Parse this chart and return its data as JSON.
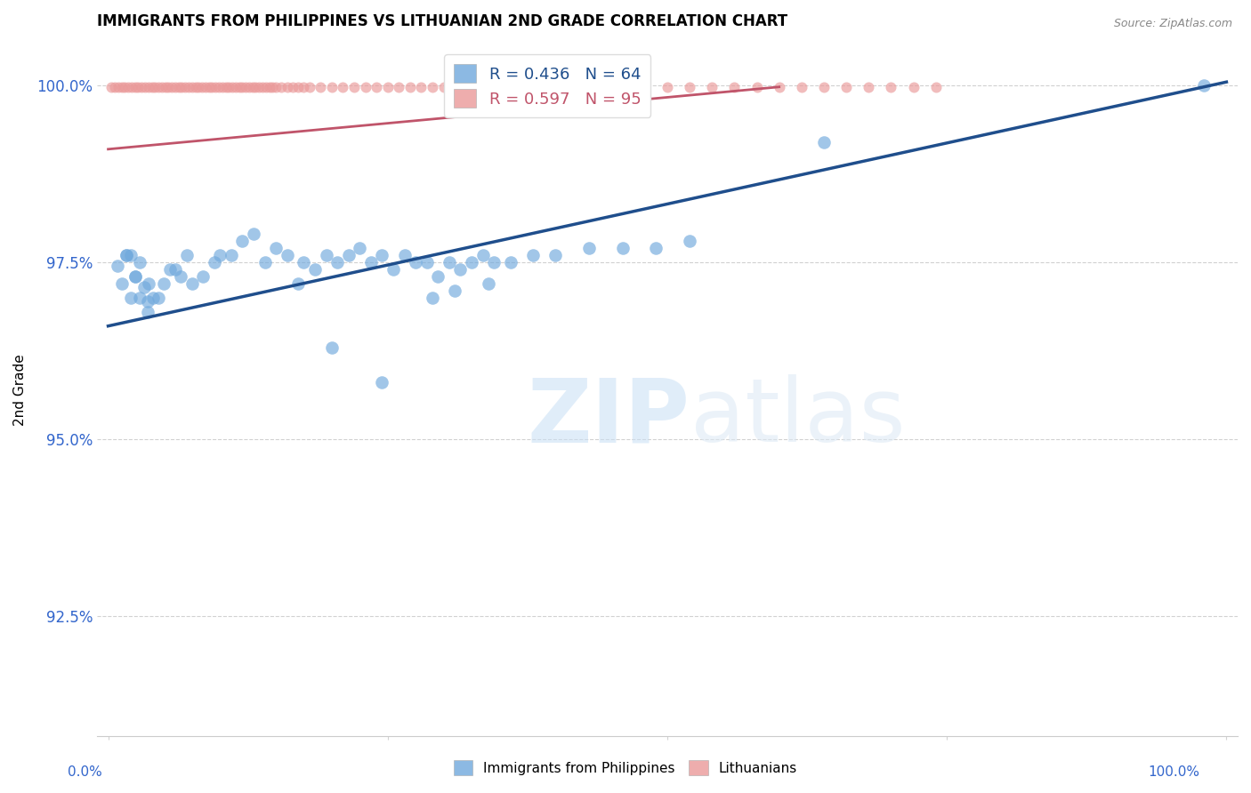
{
  "title": "IMMIGRANTS FROM PHILIPPINES VS LITHUANIAN 2ND GRADE CORRELATION CHART",
  "source": "Source: ZipAtlas.com",
  "ylabel": "2nd Grade",
  "ytick_labels": [
    "100.0%",
    "97.5%",
    "95.0%",
    "92.5%"
  ],
  "ytick_values": [
    1.0,
    0.975,
    0.95,
    0.925
  ],
  "ylim": [
    0.908,
    1.006
  ],
  "xlim": [
    -0.01,
    1.01
  ],
  "blue_color": "#6fa8dc",
  "pink_color": "#ea9999",
  "blue_line_color": "#1f4e8c",
  "pink_line_color": "#c0546a",
  "tick_color": "#3366cc",
  "legend_blue_label": "R = 0.436   N = 64",
  "legend_pink_label": "R = 0.597   N = 95",
  "legend_bottom_blue": "Immigrants from Philippines",
  "legend_bottom_pink": "Lithuanians",
  "watermark_zip": "ZIP",
  "watermark_atlas": "atlas",
  "blue_scatter_x": [
    0.008,
    0.012,
    0.016,
    0.02,
    0.024,
    0.016,
    0.02,
    0.024,
    0.028,
    0.032,
    0.036,
    0.028,
    0.035,
    0.04,
    0.035,
    0.045,
    0.05,
    0.06,
    0.065,
    0.07,
    0.055,
    0.075,
    0.085,
    0.095,
    0.1,
    0.11,
    0.12,
    0.13,
    0.14,
    0.15,
    0.16,
    0.17,
    0.175,
    0.185,
    0.195,
    0.205,
    0.215,
    0.225,
    0.235,
    0.245,
    0.255,
    0.265,
    0.275,
    0.285,
    0.295,
    0.305,
    0.315,
    0.325,
    0.335,
    0.345,
    0.29,
    0.31,
    0.34,
    0.36,
    0.38,
    0.4,
    0.43,
    0.46,
    0.49,
    0.52,
    0.2,
    0.245,
    0.98,
    0.64
  ],
  "blue_scatter_y": [
    0.9745,
    0.972,
    0.976,
    0.97,
    0.973,
    0.976,
    0.976,
    0.973,
    0.975,
    0.9715,
    0.972,
    0.97,
    0.9695,
    0.97,
    0.968,
    0.97,
    0.972,
    0.974,
    0.973,
    0.976,
    0.974,
    0.972,
    0.973,
    0.975,
    0.976,
    0.976,
    0.978,
    0.979,
    0.975,
    0.977,
    0.976,
    0.972,
    0.975,
    0.974,
    0.976,
    0.975,
    0.976,
    0.977,
    0.975,
    0.976,
    0.974,
    0.976,
    0.975,
    0.975,
    0.973,
    0.975,
    0.974,
    0.975,
    0.976,
    0.975,
    0.97,
    0.971,
    0.972,
    0.975,
    0.976,
    0.976,
    0.977,
    0.977,
    0.977,
    0.978,
    0.963,
    0.958,
    1.0,
    0.992
  ],
  "pink_scatter_x": [
    0.003,
    0.006,
    0.009,
    0.012,
    0.015,
    0.018,
    0.021,
    0.024,
    0.027,
    0.03,
    0.033,
    0.036,
    0.039,
    0.042,
    0.045,
    0.048,
    0.051,
    0.054,
    0.057,
    0.06,
    0.063,
    0.066,
    0.069,
    0.072,
    0.075,
    0.078,
    0.081,
    0.084,
    0.087,
    0.09,
    0.093,
    0.096,
    0.099,
    0.102,
    0.105,
    0.108,
    0.111,
    0.114,
    0.117,
    0.12,
    0.123,
    0.126,
    0.129,
    0.132,
    0.135,
    0.138,
    0.141,
    0.144,
    0.147,
    0.15,
    0.155,
    0.16,
    0.165,
    0.17,
    0.175,
    0.18,
    0.19,
    0.2,
    0.21,
    0.22,
    0.23,
    0.24,
    0.25,
    0.26,
    0.27,
    0.28,
    0.29,
    0.3,
    0.31,
    0.32,
    0.33,
    0.34,
    0.35,
    0.36,
    0.37,
    0.38,
    0.39,
    0.4,
    0.42,
    0.44,
    0.46,
    0.48,
    0.5,
    0.52,
    0.54,
    0.56,
    0.58,
    0.6,
    0.62,
    0.64,
    0.66,
    0.68,
    0.7,
    0.72,
    0.74
  ],
  "pink_scatter_y": [
    0.9998,
    0.9998,
    0.9998,
    0.9998,
    0.9998,
    0.9998,
    0.9998,
    0.9998,
    0.9998,
    0.9998,
    0.9998,
    0.9998,
    0.9998,
    0.9998,
    0.9998,
    0.9998,
    0.9998,
    0.9998,
    0.9998,
    0.9998,
    0.9998,
    0.9998,
    0.9998,
    0.9998,
    0.9998,
    0.9998,
    0.9998,
    0.9998,
    0.9998,
    0.9998,
    0.9998,
    0.9998,
    0.9998,
    0.9998,
    0.9998,
    0.9998,
    0.9998,
    0.9998,
    0.9998,
    0.9998,
    0.9998,
    0.9998,
    0.9998,
    0.9998,
    0.9998,
    0.9998,
    0.9998,
    0.9998,
    0.9998,
    0.9998,
    0.9998,
    0.9998,
    0.9998,
    0.9998,
    0.9998,
    0.9998,
    0.9998,
    0.9998,
    0.9998,
    0.9998,
    0.9998,
    0.9998,
    0.9998,
    0.9998,
    0.9998,
    0.9998,
    0.9998,
    0.9998,
    0.9998,
    0.9998,
    0.9998,
    0.9998,
    0.9998,
    0.9998,
    0.9998,
    0.9998,
    0.9998,
    0.9998,
    0.9998,
    0.9998,
    0.9998,
    0.9998,
    0.9998,
    0.9998,
    0.9998,
    0.9998,
    0.9998,
    0.9998,
    0.9998,
    0.9998,
    0.9998,
    0.9998,
    0.9998,
    0.9998,
    0.9998
  ],
  "blue_line": {
    "x0": 0.0,
    "y0": 0.966,
    "x1": 1.0,
    "y1": 1.0005
  },
  "pink_line": {
    "x0": 0.0,
    "y0": 0.991,
    "x1": 0.6,
    "y1": 0.9998
  }
}
